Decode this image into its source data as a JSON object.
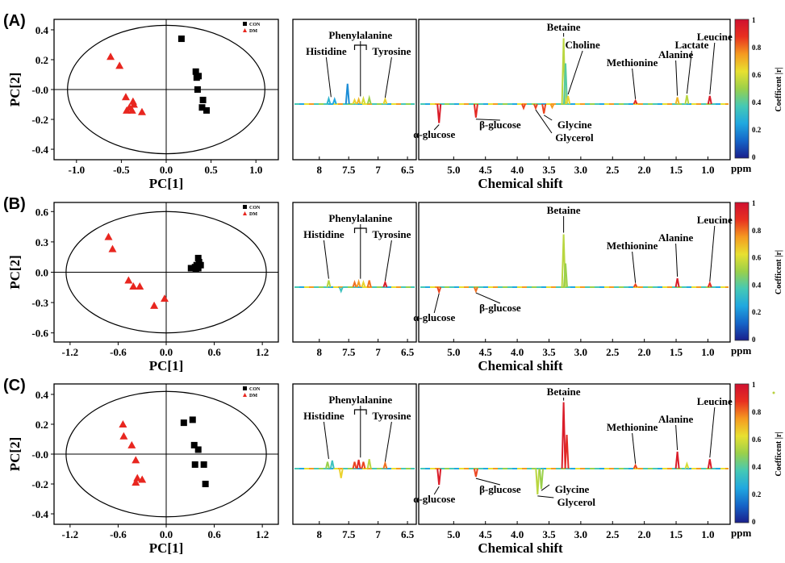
{
  "colors": {
    "con": "#000000",
    "dm": "#e8261f",
    "colormap": [
      "#1a1f8c",
      "#1565c8",
      "#20a8e0",
      "#45c9b5",
      "#9ad04a",
      "#e8e030",
      "#f59a20",
      "#e83020",
      "#d01030"
    ]
  },
  "chart_data": [
    {
      "panel_label": "(A)",
      "scores": {
        "type": "scatter",
        "xlabel": "PC[1]",
        "ylabel": "PC[2]",
        "xlim": [
          -1.25,
          1.25
        ],
        "ylim": [
          -0.47,
          0.47
        ],
        "xticks": [
          "-1.0",
          "-0.5",
          "0.0",
          "0.5",
          "1.0"
        ],
        "xtick_values": [
          -1.0,
          -0.5,
          0.0,
          0.5,
          1.0
        ],
        "yticks": [
          "0.4",
          "0.2",
          "-0.0",
          "-0.2",
          "-0.4"
        ],
        "ytick_values": [
          0.4,
          0.2,
          0.0,
          -0.2,
          -0.4
        ],
        "ellipse": {
          "rx": 1.1,
          "ry": 0.43
        },
        "legend": [
          {
            "label": "CON",
            "marker": "square"
          },
          {
            "label": "DM",
            "marker": "triangle"
          }
        ],
        "series": [
          {
            "name": "CON",
            "points": [
              [
                0.17,
                0.34
              ],
              [
                0.33,
                0.12
              ],
              [
                0.36,
                0.09
              ],
              [
                0.34,
                0.08
              ],
              [
                0.35,
                0.0
              ],
              [
                0.41,
                -0.07
              ],
              [
                0.4,
                -0.12
              ],
              [
                0.45,
                -0.14
              ]
            ]
          },
          {
            "name": "DM",
            "points": [
              [
                -0.62,
                0.22
              ],
              [
                -0.52,
                0.16
              ],
              [
                -0.45,
                -0.05
              ],
              [
                -0.37,
                -0.08
              ],
              [
                -0.36,
                -0.1
              ],
              [
                -0.41,
                -0.12
              ],
              [
                -0.44,
                -0.14
              ],
              [
                -0.38,
                -0.14
              ],
              [
                -0.27,
                -0.15
              ]
            ]
          }
        ]
      },
      "spectrum": {
        "type": "line",
        "xlabel": "Chemical shift",
        "unit": "ppm",
        "left_ticks": [
          "8",
          "7.5",
          "7",
          "6.5"
        ],
        "right_ticks": [
          "5.0",
          "4.5",
          "4.0",
          "3.5",
          "3.0",
          "2.5",
          "2.0",
          "1.5",
          "1.0"
        ],
        "peaks": [
          {
            "ppm": 7.84,
            "height": 0.08,
            "r": 0.3
          },
          {
            "ppm": 7.74,
            "height": 0.07,
            "r": 0.25
          },
          {
            "ppm": 7.52,
            "height": 0.3,
            "r": 0.2
          },
          {
            "ppm": 7.4,
            "height": 0.06,
            "r": 0.65
          },
          {
            "ppm": 7.33,
            "height": 0.07,
            "r": 0.7
          },
          {
            "ppm": 7.25,
            "height": 0.08,
            "r": 0.6
          },
          {
            "ppm": 7.15,
            "height": 0.09,
            "r": 0.5
          },
          {
            "ppm": 6.88,
            "height": 0.07,
            "r": 0.65
          },
          {
            "ppm": 5.23,
            "height": -0.28,
            "r": 0.95
          },
          {
            "ppm": 4.65,
            "height": -0.2,
            "r": 0.9
          },
          {
            "ppm": 3.9,
            "height": -0.06,
            "r": 0.85
          },
          {
            "ppm": 3.71,
            "height": -0.06,
            "r": 0.85
          },
          {
            "ppm": 3.58,
            "height": -0.14,
            "r": 0.85
          },
          {
            "ppm": 3.45,
            "height": -0.05,
            "r": 0.75
          },
          {
            "ppm": 3.27,
            "height": 0.97,
            "r": 0.55
          },
          {
            "ppm": 3.24,
            "height": 0.6,
            "r": 0.4
          },
          {
            "ppm": 3.2,
            "height": 0.12,
            "r": 0.65
          },
          {
            "ppm": 2.14,
            "height": 0.05,
            "r": 0.9
          },
          {
            "ppm": 1.48,
            "height": 0.1,
            "r": 0.7
          },
          {
            "ppm": 1.33,
            "height": 0.13,
            "r": 0.55
          },
          {
            "ppm": 0.97,
            "height": 0.12,
            "r": 0.95
          }
        ],
        "annotations": [
          {
            "text": "Histidine",
            "ppm": 7.8,
            "target": 0.08,
            "side": "above"
          },
          {
            "text": "Phenylalanine",
            "ppm": 7.3,
            "target": 0.09,
            "side": "above",
            "bracket": true
          },
          {
            "text": "Tyrosine",
            "ppm": 6.88,
            "target": 0.07,
            "side": "above"
          },
          {
            "text": "Betaine",
            "ppm": 3.27,
            "target": 0.97,
            "side": "above"
          },
          {
            "text": "Choline",
            "ppm": 3.2,
            "target": 0.12,
            "side": "above"
          },
          {
            "text": "Methionine",
            "ppm": 2.14,
            "target": 0.05,
            "side": "above"
          },
          {
            "text": "Alanine",
            "ppm": 1.48,
            "target": 0.1,
            "side": "above"
          },
          {
            "text": "Lactate",
            "ppm": 1.33,
            "target": 0.13,
            "side": "above"
          },
          {
            "text": "Leucine",
            "ppm": 0.97,
            "target": 0.12,
            "side": "above"
          },
          {
            "text": "α-glucose",
            "ppm": 5.23,
            "target": -0.28,
            "side": "below"
          },
          {
            "text": "β-glucose",
            "ppm": 4.65,
            "target": -0.2,
            "side": "below"
          },
          {
            "text": "Glycine",
            "ppm": 3.58,
            "target": -0.14,
            "side": "below"
          },
          {
            "text": "Glycerol",
            "ppm": 3.71,
            "target": -0.06,
            "side": "below"
          }
        ]
      },
      "colorbar": {
        "title": "Coefficent |r|",
        "ticks": [
          "1",
          "0.8",
          "0.6",
          "0.4",
          "0.2",
          "0"
        ]
      }
    },
    {
      "panel_label": "(B)",
      "scores": {
        "type": "scatter",
        "xlabel": "PC[1]",
        "ylabel": "PC[2]",
        "xlim": [
          -1.4,
          1.4
        ],
        "ylim": [
          -0.69,
          0.69
        ],
        "xticks": [
          "-1.2",
          "-0.6",
          "0.0",
          "0.6",
          "1.2"
        ],
        "xtick_values": [
          -1.2,
          -0.6,
          0.0,
          0.6,
          1.2
        ],
        "yticks": [
          "0.6",
          "0.3",
          "0.0",
          "-0.3",
          "-0.6"
        ],
        "ytick_values": [
          0.6,
          0.3,
          0.0,
          -0.3,
          -0.6
        ],
        "ellipse": {
          "rx": 1.25,
          "ry": 0.6
        },
        "legend": [
          {
            "label": "CON",
            "marker": "square"
          },
          {
            "label": "DM",
            "marker": "triangle"
          }
        ],
        "series": [
          {
            "name": "CON",
            "points": [
              [
                0.4,
                0.14
              ],
              [
                0.41,
                0.1
              ],
              [
                0.38,
                0.07
              ],
              [
                0.43,
                0.07
              ],
              [
                0.36,
                0.05
              ],
              [
                0.31,
                0.04
              ],
              [
                0.4,
                0.04
              ],
              [
                0.37,
                0.03
              ]
            ]
          },
          {
            "name": "DM",
            "points": [
              [
                -0.72,
                0.35
              ],
              [
                -0.67,
                0.23
              ],
              [
                -0.47,
                -0.08
              ],
              [
                -0.41,
                -0.14
              ],
              [
                -0.33,
                -0.14
              ],
              [
                -0.15,
                -0.33
              ],
              [
                -0.02,
                -0.26
              ]
            ]
          }
        ]
      },
      "spectrum": {
        "type": "line",
        "xlabel": "Chemical shift",
        "unit": "ppm",
        "left_ticks": [
          "8",
          "7.5",
          "7",
          "6.5"
        ],
        "right_ticks": [
          "5.0",
          "4.5",
          "4.0",
          "3.5",
          "3.0",
          "2.5",
          "2.0",
          "1.5",
          "1.0"
        ],
        "peaks": [
          {
            "ppm": 7.84,
            "height": 0.1,
            "r": 0.55
          },
          {
            "ppm": 7.63,
            "height": -0.06,
            "r": 0.35
          },
          {
            "ppm": 7.4,
            "height": 0.07,
            "r": 0.8
          },
          {
            "ppm": 7.33,
            "height": 0.08,
            "r": 0.75
          },
          {
            "ppm": 7.25,
            "height": 0.07,
            "r": 0.65
          },
          {
            "ppm": 7.15,
            "height": 0.1,
            "r": 0.8
          },
          {
            "ppm": 6.88,
            "height": 0.07,
            "r": 0.95
          },
          {
            "ppm": 5.23,
            "height": -0.07,
            "r": 0.85
          },
          {
            "ppm": 4.65,
            "height": -0.06,
            "r": 0.8
          },
          {
            "ppm": 3.27,
            "height": 0.78,
            "r": 0.55
          },
          {
            "ppm": 3.24,
            "height": 0.35,
            "r": 0.5
          },
          {
            "ppm": 2.14,
            "height": 0.04,
            "r": 0.85
          },
          {
            "ppm": 1.48,
            "height": 0.13,
            "r": 0.95
          },
          {
            "ppm": 0.97,
            "height": 0.06,
            "r": 0.9
          }
        ],
        "annotations": [
          {
            "text": "Histidine",
            "ppm": 7.84,
            "target": 0.1,
            "side": "above"
          },
          {
            "text": "Phenylalanine",
            "ppm": 7.3,
            "target": 0.1,
            "side": "above",
            "bracket": true
          },
          {
            "text": "Tyrosine",
            "ppm": 6.88,
            "target": 0.07,
            "side": "above"
          },
          {
            "text": "Betaine",
            "ppm": 3.27,
            "target": 0.78,
            "side": "above"
          },
          {
            "text": "Methionine",
            "ppm": 2.14,
            "target": 0.04,
            "side": "above"
          },
          {
            "text": "Alanine",
            "ppm": 1.48,
            "target": 0.13,
            "side": "above"
          },
          {
            "text": "Leucine",
            "ppm": 0.97,
            "target": 0.06,
            "side": "above"
          },
          {
            "text": "α-glucose",
            "ppm": 5.23,
            "target": -0.07,
            "side": "below"
          },
          {
            "text": "β-glucose",
            "ppm": 4.65,
            "target": -0.06,
            "side": "below"
          }
        ]
      },
      "colorbar": {
        "title": "Coefficent |r|",
        "ticks": [
          "1",
          "0.8",
          "0.6",
          "0.4",
          "0.2",
          "0"
        ]
      }
    },
    {
      "panel_label": "(C)",
      "scores": {
        "type": "scatter",
        "xlabel": "PC[1]",
        "ylabel": "PC[2]",
        "xlim": [
          -1.4,
          1.4
        ],
        "ylim": [
          -0.47,
          0.47
        ],
        "xticks": [
          "-1.2",
          "-0.6",
          "0.0",
          "0.6",
          "1.2"
        ],
        "xtick_values": [
          -1.2,
          -0.6,
          0.0,
          0.6,
          1.2
        ],
        "yticks": [
          "0.4",
          "0.2",
          "-0.0",
          "-0.2",
          "-0.4"
        ],
        "ytick_values": [
          0.4,
          0.2,
          0.0,
          -0.2,
          -0.4
        ],
        "ellipse": {
          "rx": 1.25,
          "ry": 0.42
        },
        "legend": [
          {
            "label": "CON",
            "marker": "square"
          },
          {
            "label": "DM",
            "marker": "triangle"
          }
        ],
        "series": [
          {
            "name": "CON",
            "points": [
              [
                0.22,
                0.21
              ],
              [
                0.33,
                0.23
              ],
              [
                0.35,
                0.06
              ],
              [
                0.4,
                0.03
              ],
              [
                0.36,
                -0.07
              ],
              [
                0.47,
                -0.07
              ],
              [
                0.49,
                -0.2
              ]
            ]
          },
          {
            "name": "DM",
            "points": [
              [
                -0.54,
                0.2
              ],
              [
                -0.53,
                0.12
              ],
              [
                -0.43,
                0.06
              ],
              [
                -0.38,
                -0.04
              ],
              [
                -0.36,
                -0.16
              ],
              [
                -0.3,
                -0.17
              ],
              [
                -0.38,
                -0.19
              ]
            ]
          }
        ]
      },
      "spectrum": {
        "type": "line",
        "xlabel": "Chemical shift",
        "unit": "ppm",
        "left_ticks": [
          "8",
          "7.5",
          "7",
          "6.5"
        ],
        "right_ticks": [
          "5.0",
          "4.5",
          "4.0",
          "3.5",
          "3.0",
          "2.5",
          "2.0",
          "1.5",
          "1.0"
        ],
        "peaks": [
          {
            "ppm": 7.86,
            "height": 0.1,
            "r": 0.5
          },
          {
            "ppm": 7.78,
            "height": 0.12,
            "r": 0.35
          },
          {
            "ppm": 7.63,
            "height": -0.14,
            "r": 0.65
          },
          {
            "ppm": 7.4,
            "height": 0.1,
            "r": 0.85
          },
          {
            "ppm": 7.33,
            "height": 0.13,
            "r": 0.9
          },
          {
            "ppm": 7.25,
            "height": 0.1,
            "r": 0.85
          },
          {
            "ppm": 7.15,
            "height": 0.14,
            "r": 0.55
          },
          {
            "ppm": 6.88,
            "height": 0.08,
            "r": 0.8
          },
          {
            "ppm": 5.23,
            "height": -0.24,
            "r": 0.95
          },
          {
            "ppm": 4.65,
            "height": -0.12,
            "r": 0.85
          },
          {
            "ppm": 3.68,
            "height": -0.38,
            "r": 0.55
          },
          {
            "ppm": 3.62,
            "height": -0.3,
            "r": 0.5
          },
          {
            "ppm": 3.27,
            "height": 0.98,
            "r": 0.95
          },
          {
            "ppm": 3.22,
            "height": 0.5,
            "r": 0.9
          },
          {
            "ppm": 2.14,
            "height": 0.05,
            "r": 0.85
          },
          {
            "ppm": 1.48,
            "height": 0.25,
            "r": 0.95
          },
          {
            "ppm": 1.33,
            "height": 0.07,
            "r": 0.6
          },
          {
            "ppm": 0.97,
            "height": 0.14,
            "r": 0.95
          }
        ],
        "annotations": [
          {
            "text": "Histidine",
            "ppm": 7.84,
            "target": 0.12,
            "side": "above"
          },
          {
            "text": "Phenylalanine",
            "ppm": 7.3,
            "target": 0.14,
            "side": "above",
            "bracket": true
          },
          {
            "text": "Tyrosine",
            "ppm": 6.88,
            "target": 0.08,
            "side": "above"
          },
          {
            "text": "Betaine",
            "ppm": 3.27,
            "target": 0.98,
            "side": "above"
          },
          {
            "text": "Methionine",
            "ppm": 2.14,
            "target": 0.05,
            "side": "above"
          },
          {
            "text": "Alanine",
            "ppm": 1.48,
            "target": 0.25,
            "side": "above"
          },
          {
            "text": "Leucine",
            "ppm": 0.97,
            "target": 0.14,
            "side": "above"
          },
          {
            "text": "α-glucose",
            "ppm": 5.23,
            "target": -0.24,
            "side": "below"
          },
          {
            "text": "β-glucose",
            "ppm": 4.65,
            "target": -0.12,
            "side": "below"
          },
          {
            "text": "Glycine",
            "ppm": 3.62,
            "target": -0.3,
            "side": "below"
          },
          {
            "text": "Glycerol",
            "ppm": 3.68,
            "target": -0.38,
            "side": "below"
          }
        ]
      },
      "colorbar": {
        "title": "Coefficent |r|",
        "ticks": [
          "1",
          "0.8",
          "0.6",
          "0.4",
          "0.2",
          "0"
        ]
      }
    }
  ]
}
